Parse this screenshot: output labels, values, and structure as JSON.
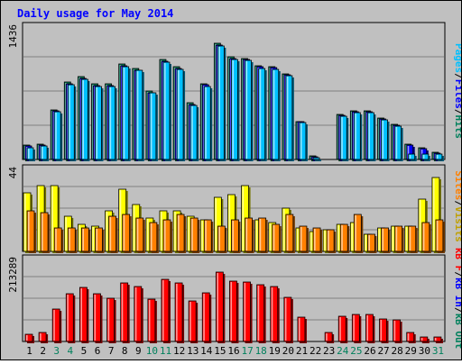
{
  "chart_data": {
    "type": "bar",
    "title": "Daily usage for May 2014",
    "categories": [
      "1",
      "2",
      "3",
      "4",
      "5",
      "6",
      "7",
      "8",
      "9",
      "10",
      "11",
      "12",
      "13",
      "14",
      "15",
      "16",
      "17",
      "18",
      "19",
      "20",
      "21",
      "22",
      "23",
      "24",
      "25",
      "26",
      "27",
      "28",
      "29",
      "30",
      "31"
    ],
    "weekend_days": [
      "3",
      "4",
      "10",
      "11",
      "17",
      "18",
      "24",
      "25",
      "31"
    ],
    "panels": [
      {
        "id": "hits",
        "ymax_label": "1436",
        "ymax": 1436,
        "series": [
          {
            "name": "Hits",
            "color": "#00805c",
            "values": [
              150,
              158,
              523,
              815,
              875,
              795,
              795,
              1006,
              963,
              721,
              1056,
              979,
              595,
              800,
              1227,
              1082,
              1069,
              992,
              981,
              907,
              403,
              35,
              0,
              472,
              511,
              516,
              434,
              375,
              157,
              125,
              79
            ]
          },
          {
            "name": "Files",
            "color": "#0000ff",
            "values": [
              142,
              150,
              510,
              800,
              858,
              782,
              780,
              990,
              945,
              705,
              1040,
              961,
              580,
              785,
              1210,
              1065,
              1055,
              975,
              966,
              890,
              395,
              28,
              0,
              462,
              500,
              506,
              425,
              365,
              148,
              116,
              70
            ]
          },
          {
            "name": "Pages",
            "color": "#00c0ff",
            "values": [
              125,
              140,
              500,
              790,
              850,
              775,
              770,
              980,
              940,
              700,
              1030,
              955,
              572,
              775,
              1200,
              1055,
              1045,
              965,
              955,
              880,
              388,
              22,
              0,
              455,
              492,
              498,
              418,
              355,
              60,
              60,
              60
            ]
          }
        ]
      },
      {
        "id": "visits",
        "ymax_label": "44",
        "ymax": 44,
        "series": [
          {
            "name": "Visits",
            "color": "#ffff00",
            "values": [
              30,
              34,
              34,
              18,
              14,
              13,
              21,
              32,
              24,
              17,
              21,
              21,
              18,
              16,
              28,
              29,
              34,
              16,
              15,
              22,
              12,
              10,
              11,
              14,
              15,
              9,
              12,
              13,
              13,
              27,
              38
            ]
          },
          {
            "name": "Sites",
            "color": "#ff8000",
            "values": [
              21,
              20,
              12,
              12,
              12,
              12,
              18,
              19,
              17,
              15,
              16,
              19,
              17,
              16,
              13,
              16,
              17,
              17,
              14,
              19,
              13,
              12,
              11,
              14,
              19,
              9,
              12,
              13,
              13,
              15,
              16
            ]
          }
        ]
      },
      {
        "id": "kbytes",
        "ymax_label": "213289",
        "ymax": 213289,
        "series": [
          {
            "name": "KBytes",
            "color": "#ff0000",
            "values": [
              19000,
              23000,
              81000,
              120000,
              134000,
              118000,
              108000,
              147000,
              138000,
              106000,
              155000,
              147000,
              100000,
              121000,
              172000,
              150000,
              148000,
              141000,
              137000,
              110000,
              60000,
              0,
              22000,
              63000,
              68000,
              67000,
              57000,
              54000,
              22000,
              12000,
              11000
            ]
          }
        ]
      }
    ],
    "legend": {
      "hits": {
        "pages": "Pages",
        "files": "Files",
        "hits": "Hits",
        "sep": "/"
      },
      "visits": {
        "sites": "Sites",
        "visits": "Visits",
        "sep": "/"
      },
      "kbytes": {
        "kbf": "kB F",
        "kbin": "kB In",
        "kbout": "kB Out",
        "sep": "/"
      }
    },
    "grid": true
  }
}
